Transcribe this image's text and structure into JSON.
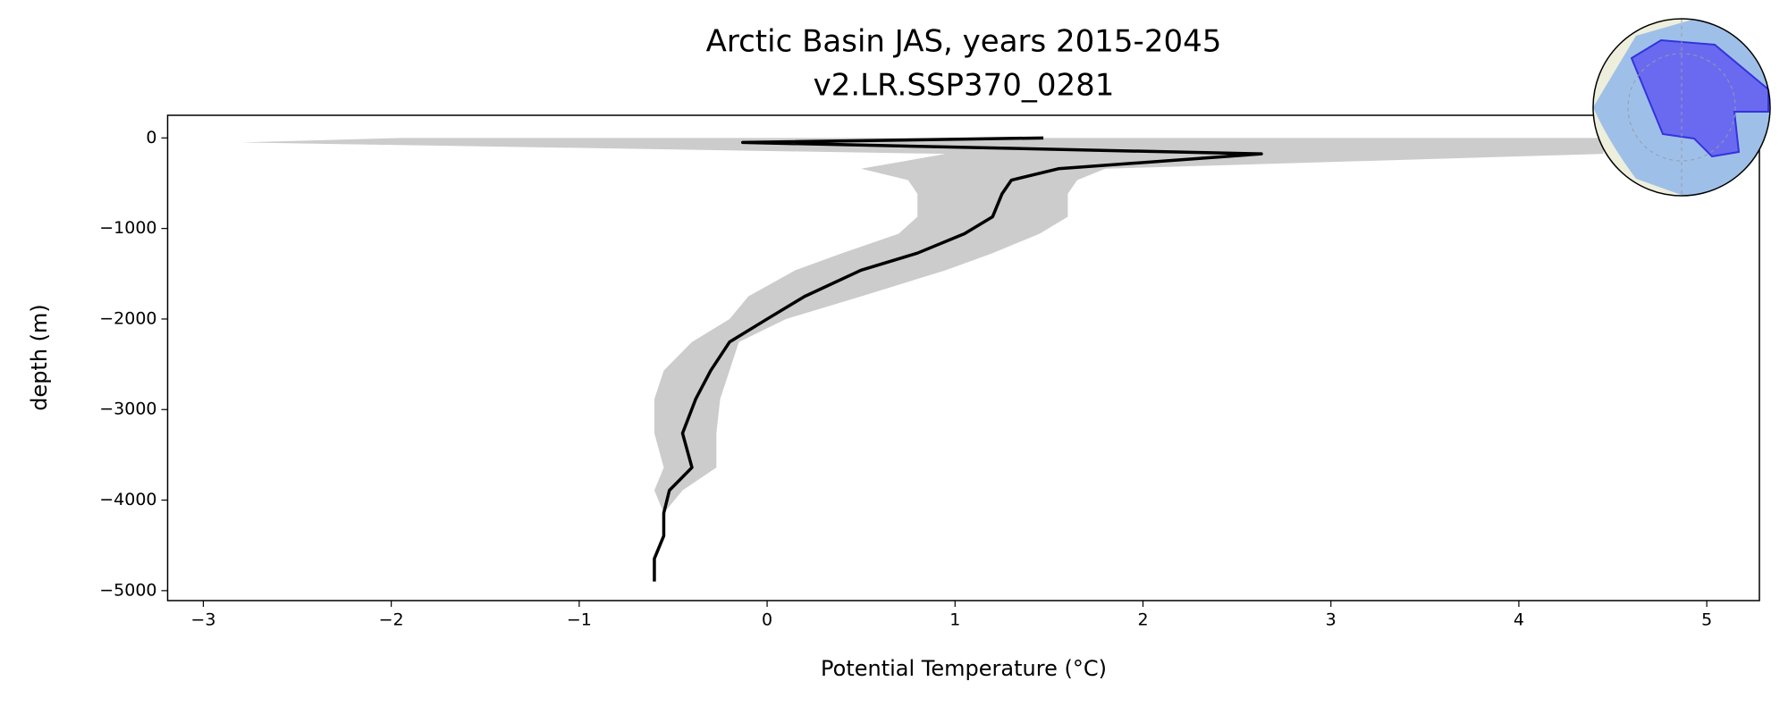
{
  "chart_data": {
    "type": "line",
    "title": "Arctic Basin JAS, years 2015-2045",
    "subtitle": "v2.LR.SSP370_0281",
    "x_label": "Potential Temperature (°C)",
    "y_label": "depth (m)",
    "depth": [
      0,
      -50,
      -176,
      -340,
      -466,
      -617,
      -870,
      -1058,
      -1272,
      -1461,
      -1750,
      -2000,
      -2254,
      -2569,
      -2884,
      -3262,
      -3640,
      -3892,
      -4144,
      -4395,
      -4647,
      -4899
    ],
    "series": [
      {
        "color": "#000000",
        "values": [
          1.47,
          -0.13,
          2.63,
          1.55,
          1.3,
          1.25,
          1.2,
          1.05,
          0.8,
          0.5,
          0.2,
          0.0,
          -0.2,
          -0.3,
          -0.38,
          -0.45,
          -0.4,
          -0.52,
          -0.55,
          -0.55,
          -0.6,
          -0.6
        ]
      },
      {
        "color": "#cccccc",
        "values": [
          -1.95,
          -2.8,
          0.95,
          0.5,
          0.75,
          0.8,
          0.8,
          0.7,
          0.4,
          0.15,
          -0.1,
          -0.2,
          -0.4,
          -0.55,
          -0.6,
          -0.6,
          -0.55,
          -0.6,
          -0.55,
          null,
          null,
          null
        ]
      },
      {
        "color": "#cccccc",
        "values": [
          4.9,
          4.45,
          4.45,
          1.8,
          1.65,
          1.6,
          1.6,
          1.45,
          1.2,
          0.95,
          0.5,
          0.1,
          -0.15,
          -0.2,
          -0.25,
          -0.27,
          -0.27,
          -0.45,
          -0.55,
          null,
          null,
          null
        ]
      }
    ],
    "xlim": [
      -3.19,
      5.28
    ],
    "ylim": [
      250,
      -5110
    ],
    "xticks": [
      {
        "value": -3,
        "label": "−3"
      },
      {
        "value": -2,
        "label": "−2"
      },
      {
        "value": -1,
        "label": "−1"
      },
      0,
      1,
      2,
      3,
      4,
      5
    ],
    "yticks": [
      0,
      {
        "value": -1000,
        "label": "−1000"
      },
      {
        "value": -2000,
        "label": "−2000"
      },
      {
        "value": -3000,
        "label": "−3000"
      },
      {
        "value": -4000,
        "label": "−4000"
      },
      {
        "value": -5000,
        "label": "−5000"
      }
    ]
  }
}
